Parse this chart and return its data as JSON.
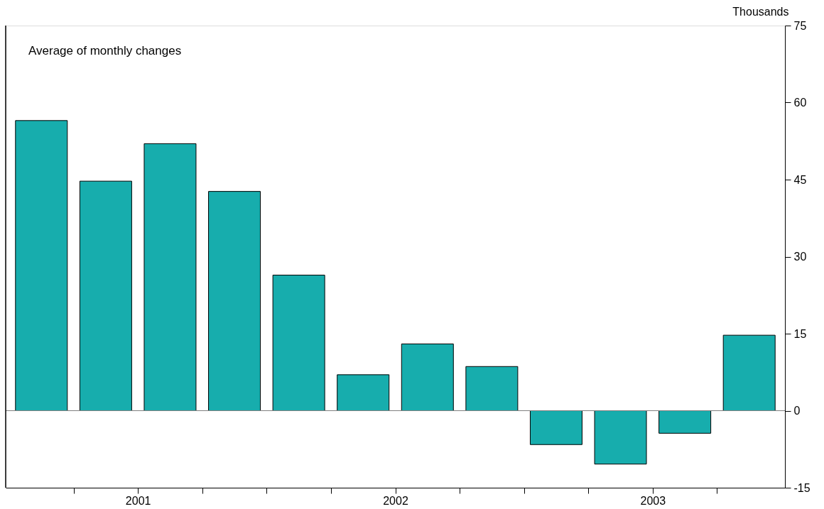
{
  "chart_data": {
    "type": "bar",
    "annotations": [
      "Average of monthly changes"
    ],
    "ylabel": "Thousands",
    "x": [
      2001.125,
      2001.375,
      2001.625,
      2001.875,
      2002.125,
      2002.375,
      2002.625,
      2002.875,
      2003.125,
      2003.375,
      2003.625,
      2003.875
    ],
    "values": [
      56.5,
      44.7,
      52.0,
      42.7,
      26.4,
      7.0,
      13.0,
      8.6,
      -6.6,
      -10.4,
      -4.4,
      14.7
    ],
    "color": "#17adad",
    "xlim": [
      2001,
      2004
    ],
    "xticks": [
      {
        "value": 2001.25,
        "label": null
      },
      {
        "value": 2001.5,
        "label": "2001"
      },
      {
        "value": 2001.75,
        "label": null
      },
      {
        "value": 2002,
        "label": null
      },
      {
        "value": 2002.25,
        "label": null
      },
      {
        "value": 2002.5,
        "label": "2002"
      },
      {
        "value": 2002.75,
        "label": null
      },
      {
        "value": 2003,
        "label": null
      },
      {
        "value": 2003.25,
        "label": null
      },
      {
        "value": 2003.5,
        "label": "2003"
      },
      {
        "value": 2003.75,
        "label": null
      }
    ],
    "ylim": [
      -15,
      75
    ],
    "yticks": [
      -15,
      0,
      15,
      30,
      45,
      60,
      75
    ],
    "ref_lines": [
      {
        "axis": "y",
        "value": 0,
        "color": "#808080"
      }
    ],
    "grid": false
  }
}
